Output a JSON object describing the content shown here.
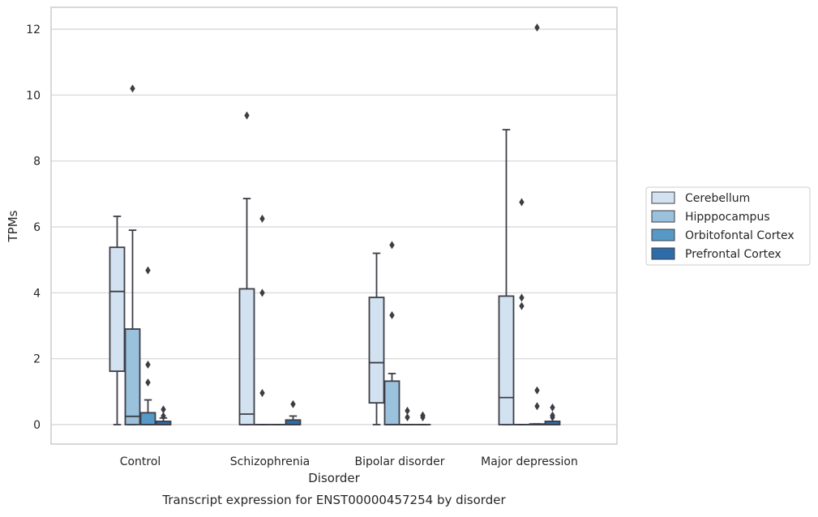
{
  "chart_data": {
    "type": "box",
    "caption": "Transcript expression for ENST00000457254 by disorder",
    "xlabel": "Disorder",
    "ylabel": "TPMs",
    "ylim": [
      -0.58,
      12.65
    ],
    "yticks": [
      0,
      2,
      4,
      6,
      8,
      10,
      12
    ],
    "grid": "horizontal",
    "legend_position": "right",
    "categories": [
      "Control",
      "Schizophrenia",
      "Bipolar disorder",
      "Major depression"
    ],
    "series": [
      {
        "name": "Cerebellum",
        "color": "#d2e2f0",
        "boxes": [
          {
            "whisker_low": 0,
            "q1": 1.62,
            "median": 4.04,
            "q3": 5.38,
            "whisker_high": 6.32,
            "outliers": []
          },
          {
            "whisker_low": 0,
            "q1": 0,
            "median": 0.32,
            "q3": 4.12,
            "whisker_high": 6.86,
            "outliers": [
              9.38
            ]
          },
          {
            "whisker_low": 0,
            "q1": 0.66,
            "median": 1.88,
            "q3": 3.86,
            "whisker_high": 5.2,
            "outliers": []
          },
          {
            "whisker_low": 0,
            "q1": 0,
            "median": 0.82,
            "q3": 3.9,
            "whisker_high": 8.95,
            "outliers": []
          }
        ]
      },
      {
        "name": "Hipppocampus",
        "color": "#9ac2dc",
        "boxes": [
          {
            "whisker_low": 0,
            "q1": 0,
            "median": 0.25,
            "q3": 2.9,
            "whisker_high": 5.9,
            "outliers": [
              10.2
            ]
          },
          {
            "whisker_low": 0,
            "q1": 0,
            "median": 0,
            "q3": 0,
            "whisker_high": 0,
            "outliers": [
              6.25,
              4.0,
              0.96
            ]
          },
          {
            "whisker_low": 0,
            "q1": 0,
            "median": 0,
            "q3": 1.32,
            "whisker_high": 1.55,
            "outliers": [
              5.45,
              3.32
            ]
          },
          {
            "whisker_low": 0,
            "q1": 0,
            "median": 0,
            "q3": 0,
            "whisker_high": 0,
            "outliers": [
              6.75,
              3.85,
              3.6
            ]
          }
        ]
      },
      {
        "name": "Orbitofontal Cortex",
        "color": "#5799c6",
        "boxes": [
          {
            "whisker_low": 0,
            "q1": 0,
            "median": 0,
            "q3": 0.36,
            "whisker_high": 0.75,
            "outliers": [
              4.68,
              1.82,
              1.28
            ]
          },
          {
            "whisker_low": 0,
            "q1": 0,
            "median": 0,
            "q3": 0,
            "whisker_high": 0,
            "outliers": []
          },
          {
            "whisker_low": 0,
            "q1": 0,
            "median": 0,
            "q3": 0,
            "whisker_high": 0,
            "outliers": [
              0.42,
              0.22
            ]
          },
          {
            "whisker_low": 0,
            "q1": 0,
            "median": 0,
            "q3": 0.02,
            "whisker_high": 0.02,
            "outliers": [
              12.05,
              1.04,
              0.56
            ]
          }
        ]
      },
      {
        "name": "Prefrontal Cortex",
        "color": "#2e6ca8",
        "boxes": [
          {
            "whisker_low": 0,
            "q1": 0,
            "median": 0,
            "q3": 0.1,
            "whisker_high": 0.2,
            "outliers": [
              0.46,
              0.26
            ]
          },
          {
            "whisker_low": 0,
            "q1": 0,
            "median": 0,
            "q3": 0.14,
            "whisker_high": 0.26,
            "outliers": [
              0.62
            ]
          },
          {
            "whisker_low": 0,
            "q1": 0,
            "median": 0,
            "q3": 0,
            "whisker_high": 0,
            "outliers": [
              0.28,
              0.22
            ]
          },
          {
            "whisker_low": 0,
            "q1": 0,
            "median": 0,
            "q3": 0.1,
            "whisker_high": 0.1,
            "outliers": [
              0.52,
              0.28,
              0.22
            ]
          }
        ]
      }
    ]
  }
}
